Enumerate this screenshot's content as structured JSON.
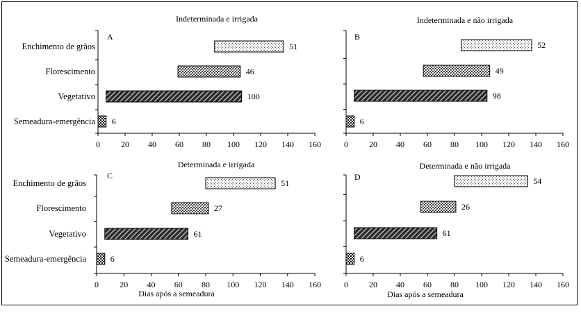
{
  "chart_data": [
    {
      "type": "bar",
      "orientation": "horizontal",
      "title": "Indeterminada e irrigada",
      "letter": "A",
      "categories": [
        "Enchimento de grãos",
        "Florescimento",
        "Vegetativo",
        "Semeadura-emergência"
      ],
      "start": [
        86,
        59,
        6,
        0
      ],
      "values": [
        51,
        46,
        100,
        6
      ],
      "xlabel": "",
      "xlim": [
        0,
        160
      ],
      "xticks": [
        0,
        20,
        40,
        60,
        80,
        100,
        120,
        140,
        160
      ]
    },
    {
      "type": "bar",
      "orientation": "horizontal",
      "title": "Indeterminada e não irrigada",
      "letter": "B",
      "categories": [
        "Enchimento de grãos",
        "Florescimento",
        "Vegetativo",
        "Semeadura-emergência"
      ],
      "start": [
        85,
        57,
        6,
        0
      ],
      "values": [
        52,
        49,
        98,
        6
      ],
      "xlabel": "",
      "xlim": [
        0,
        160
      ],
      "xticks": [
        0,
        20,
        40,
        60,
        80,
        100,
        120,
        140,
        160
      ]
    },
    {
      "type": "bar",
      "orientation": "horizontal",
      "title": "Determinada e irrigada",
      "letter": "C",
      "categories": [
        "Enchimento de grãos",
        "Florescimento",
        "Vegetativo",
        "Semeadura-emergência"
      ],
      "start": [
        80,
        55,
        6,
        0
      ],
      "values": [
        51,
        27,
        61,
        6
      ],
      "xlabel": "Dias após a semeadura",
      "xlim": [
        0,
        160
      ],
      "xticks": [
        0,
        20,
        40,
        60,
        80,
        100,
        120,
        140,
        160
      ]
    },
    {
      "type": "bar",
      "orientation": "horizontal",
      "title": "Determinada e não irrigada",
      "letter": "D",
      "categories": [
        "Enchimento de grãos",
        "Florescimento",
        "Vegetativo",
        "Semeadura-emergência"
      ],
      "start": [
        80,
        55,
        6,
        0
      ],
      "values": [
        54,
        26,
        61,
        6
      ],
      "xlabel": "Dias após a semeadura",
      "xlim": [
        0,
        160
      ],
      "xticks": [
        0,
        20,
        40,
        60,
        80,
        100,
        120,
        140,
        160
      ]
    }
  ],
  "colors": {
    "frame": "#000000",
    "light_fill": "#f2f2f2",
    "medium_fill": "#9a9a9a",
    "dark_fill": "#3a3a3a",
    "checker_fill": "#222222"
  }
}
